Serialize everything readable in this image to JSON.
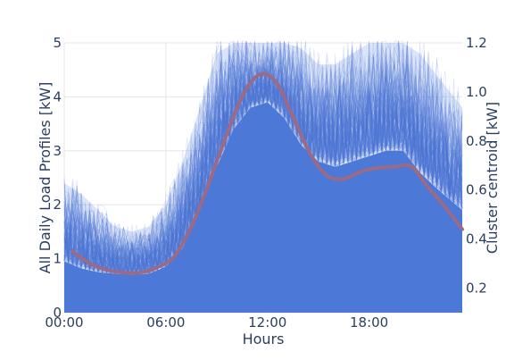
{
  "chart_data": {
    "type": "line",
    "xlabel": "Hours",
    "ylabel_left": "All Daily Load Profiles [kW]",
    "ylabel_right": "Cluster centroid [kW]",
    "x_unit": "hours",
    "x_ticks": [
      {
        "value": 0,
        "label": "00:00"
      },
      {
        "value": 6,
        "label": "06:00"
      },
      {
        "value": 12,
        "label": "12:00"
      },
      {
        "value": 18,
        "label": "18:00"
      }
    ],
    "xlim": [
      0,
      23.5
    ],
    "y_left": {
      "ylim": [
        0,
        5
      ],
      "ticks": [
        0,
        1,
        2,
        3,
        4,
        5
      ]
    },
    "y_right": {
      "ylim": [
        0.1,
        1.2
      ],
      "ticks": [
        0.2,
        0.4,
        0.6,
        0.8,
        1,
        1.2
      ],
      "tick_labels": [
        "0.2",
        "0.4",
        "0.6",
        "0.8",
        "1.0",
        "1.2"
      ]
    },
    "grid": true,
    "colors": {
      "profiles": "#4c78d8",
      "profiles_light": "#7f9fe6",
      "centroid": "#9a6a87",
      "background": "#ffffff",
      "text": "#2a3f5f"
    },
    "series": [
      {
        "axis": "left",
        "style": "filled band of many overlapping profiles",
        "x": [
          0,
          1,
          2,
          3,
          4,
          5,
          6,
          7,
          8,
          9,
          10,
          11,
          12,
          13,
          14,
          15,
          16,
          17,
          18,
          19,
          20,
          21,
          22,
          23.5
        ],
        "dense_upper": [
          0.95,
          0.82,
          0.75,
          0.72,
          0.7,
          0.72,
          0.85,
          1.2,
          1.9,
          2.7,
          3.4,
          3.8,
          3.9,
          3.6,
          3.1,
          2.8,
          2.7,
          2.8,
          2.9,
          3.0,
          3.0,
          2.6,
          2.3,
          1.9
        ],
        "spread_upper": [
          2.4,
          2.2,
          1.9,
          1.6,
          1.5,
          1.6,
          2.0,
          2.8,
          3.8,
          4.8,
          5,
          5,
          5,
          5,
          4.9,
          4.6,
          4.6,
          4.8,
          5,
          5,
          5,
          4.8,
          4.4,
          3.8
        ]
      },
      {
        "axis": "right",
        "style": "centroid line",
        "x": [
          0.5,
          1.5,
          2.5,
          3.5,
          4.5,
          5.5,
          6.5,
          7.5,
          8.5,
          9.5,
          10.5,
          11.5,
          12.5,
          13.5,
          14.5,
          15.5,
          16.5,
          17.5,
          18.5,
          19.5,
          20.5,
          21.5,
          22.5,
          23.5
        ],
        "y": [
          0.35,
          0.3,
          0.275,
          0.263,
          0.263,
          0.285,
          0.33,
          0.45,
          0.62,
          0.81,
          0.98,
          1.07,
          1.04,
          0.9,
          0.75,
          0.66,
          0.645,
          0.675,
          0.69,
          0.695,
          0.695,
          0.61,
          0.53,
          0.44
        ]
      }
    ]
  }
}
